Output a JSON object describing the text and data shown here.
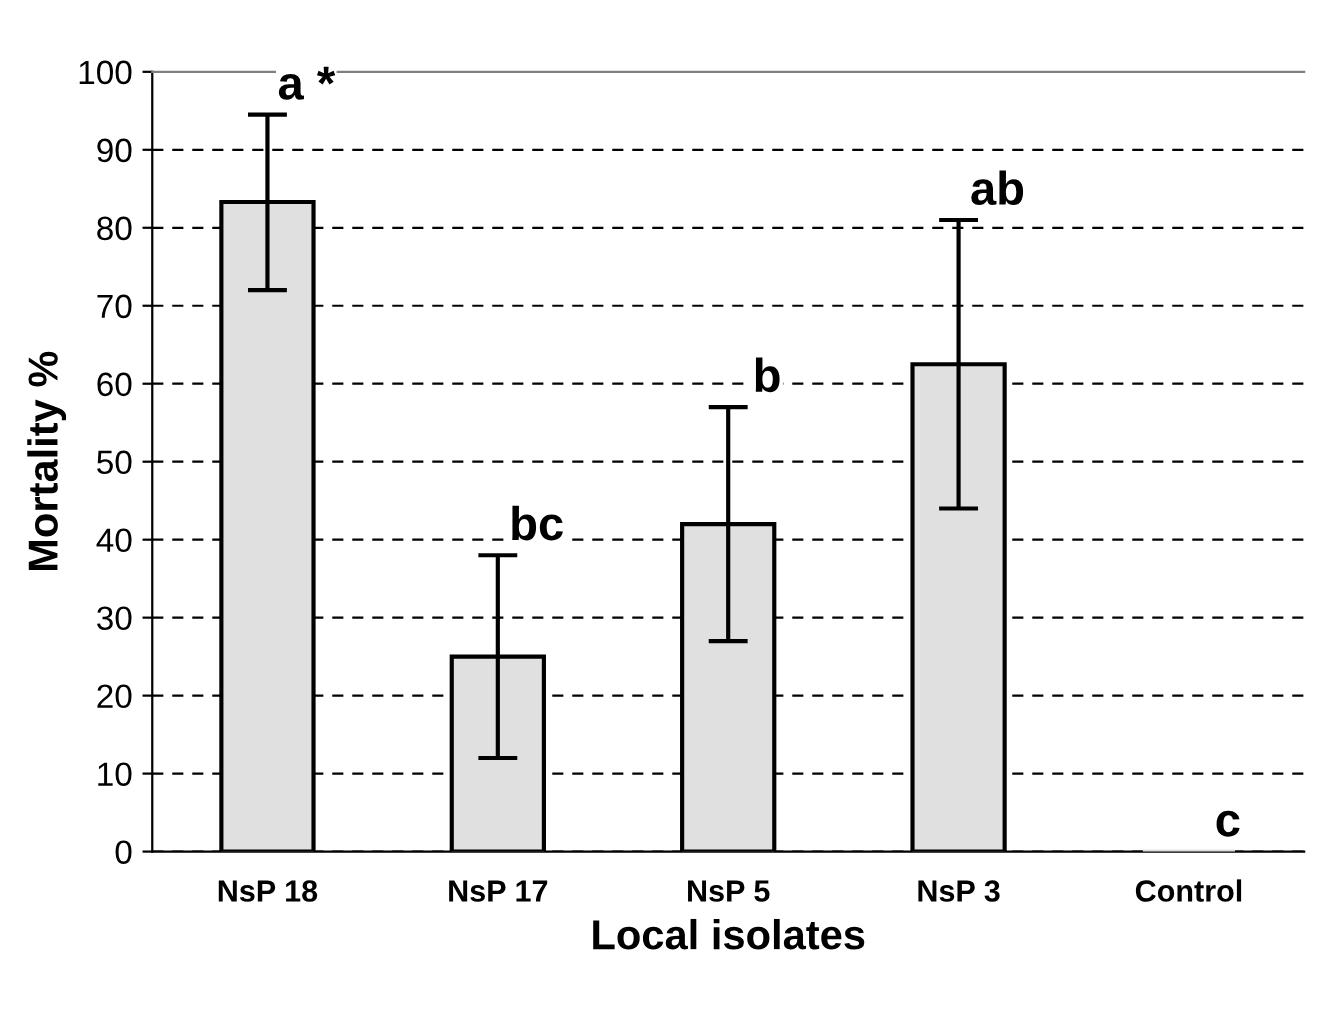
{
  "chart_data": {
    "type": "bar",
    "xlabel": "Local isolates",
    "ylabel": "Mortality %",
    "categories": [
      "NsP 18",
      "NsP 17",
      "NsP 5",
      "NsP 3",
      "Control"
    ],
    "values": [
      83.3,
      25,
      42,
      62.5,
      0
    ],
    "errors": [
      [
        72,
        94.5
      ],
      [
        12,
        38
      ],
      [
        27,
        57
      ],
      [
        44,
        81
      ],
      null
    ],
    "color": "#e0e0e0",
    "ylim": [
      0,
      100
    ],
    "yticks": [
      0,
      10,
      20,
      30,
      40,
      50,
      60,
      70,
      80,
      90,
      100
    ],
    "grid": "y",
    "annotations": [
      {
        "text": "a *",
        "x": "NsP 18",
        "y": 94.5
      },
      {
        "text": "bc",
        "x": "NsP 17",
        "y": 38
      },
      {
        "text": "b",
        "x": "NsP 5",
        "y": 57
      },
      {
        "text": "ab",
        "x": "NsP 3",
        "y": 81
      },
      {
        "text": "c",
        "x": "Control",
        "y": 0
      }
    ]
  }
}
